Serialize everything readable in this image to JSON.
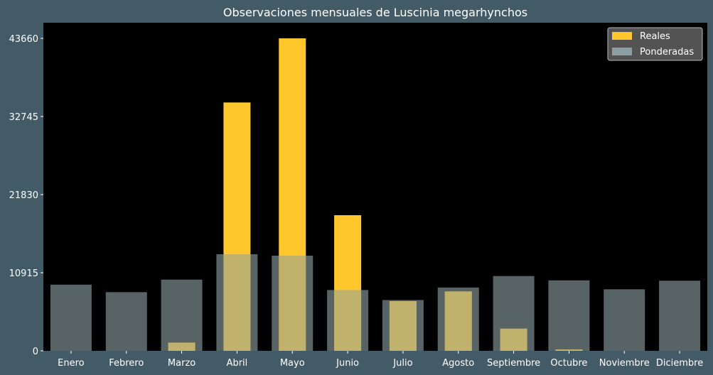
{
  "chart_data": {
    "type": "bar",
    "title": "Observaciones mensuales de Luscinia megarhynchos",
    "xlabel": "",
    "ylabel": "",
    "categories": [
      "Enero",
      "Febrero",
      "Marzo",
      "Abril",
      "Mayo",
      "Junio",
      "Julio",
      "Agosto",
      "Septiembre",
      "Octubre",
      "Noviembre",
      "Diciembre"
    ],
    "series": [
      {
        "name": "Reales",
        "color": "#ffc72c",
        "values": [
          0,
          0,
          1150,
          34700,
          43660,
          18950,
          6950,
          8300,
          3100,
          200,
          0,
          0
        ]
      },
      {
        "name": "Ponderadas",
        "color": "#8c9fa3",
        "values": [
          9250,
          8200,
          9950,
          13500,
          13300,
          8500,
          7100,
          8850,
          10450,
          9850,
          8600,
          9800
        ]
      }
    ],
    "yticks": [
      0,
      10915,
      21830,
      32745,
      43660
    ],
    "ylim": [
      0,
      43660
    ],
    "grid": false,
    "legend": "top-right",
    "plot_background": "#000000",
    "figure_background": "#435b66"
  }
}
